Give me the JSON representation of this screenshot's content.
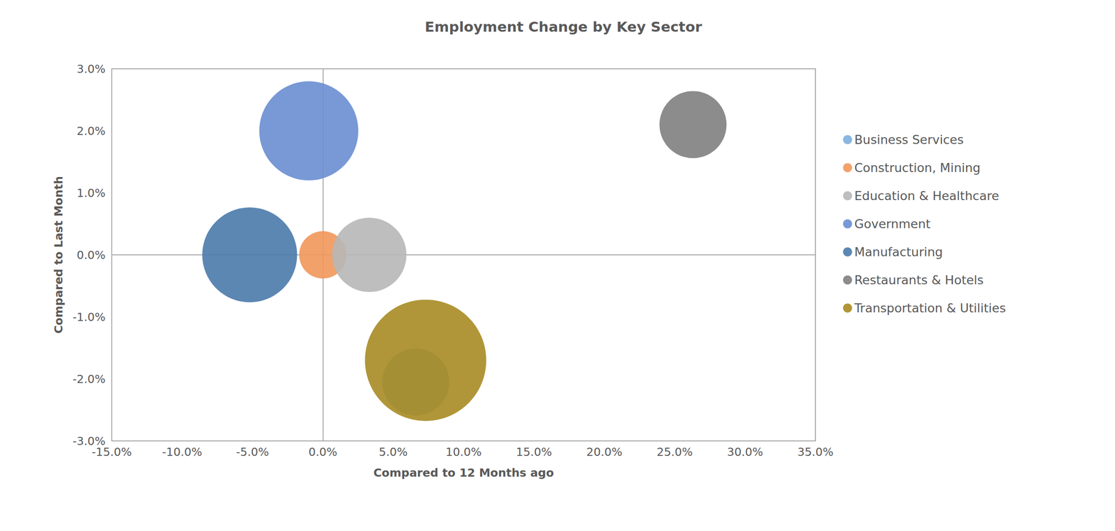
{
  "chart_data": {
    "type": "bubble",
    "title": "Employment Change by Key Sector",
    "x_label": "Compared to 12 Months ago",
    "y_label": "Compared to Last Month",
    "xlim": [
      -15,
      35
    ],
    "xticks": [
      {
        "value": -15,
        "label": "-15.0%"
      },
      {
        "value": -10,
        "label": "-10.0%"
      },
      {
        "value": -5,
        "label": "-5.0%"
      },
      {
        "value": 0,
        "label": "0.0%"
      },
      {
        "value": 5,
        "label": "5.0%"
      },
      {
        "value": 10,
        "label": "10.0%"
      },
      {
        "value": 15,
        "label": "15.0%"
      },
      {
        "value": 20,
        "label": "20.0%"
      },
      {
        "value": 25,
        "label": "25.0%"
      },
      {
        "value": 30,
        "label": "30.0%"
      },
      {
        "value": 35,
        "label": "35.0%"
      }
    ],
    "ylim": [
      -3,
      3
    ],
    "yticks": [
      {
        "value": -3,
        "label": "-3.0%"
      },
      {
        "value": -2,
        "label": "-2.0%"
      },
      {
        "value": -1,
        "label": "-1.0%"
      },
      {
        "value": 0,
        "label": "0.0%"
      },
      {
        "value": 1,
        "label": "1.0%"
      },
      {
        "value": 2,
        "label": "2.0%"
      },
      {
        "value": 3,
        "label": "3.0%"
      }
    ],
    "grid": false,
    "legend": "right",
    "series": [
      {
        "name": "Business Services",
        "color": "#7cafdd",
        "x": [
          6.6
        ],
        "values": [
          -2.05
        ],
        "size": [
          22
        ]
      },
      {
        "name": "Construction, Mining",
        "color": "#f1975a",
        "x": [
          0.0
        ],
        "values": [
          0.0
        ],
        "size": [
          11
        ]
      },
      {
        "name": "Education & Healthcare",
        "color": "#b7b7b7",
        "x": [
          3.3
        ],
        "values": [
          0.0
        ],
        "size": [
          27
        ]
      },
      {
        "name": "Government",
        "color": "#698ed0",
        "x": [
          -1.0
        ],
        "values": [
          2.0
        ],
        "size": [
          48
        ]
      },
      {
        "name": "Manufacturing",
        "color": "#4a7aab",
        "x": [
          -5.2
        ],
        "values": [
          0.0
        ],
        "size": [
          44
        ]
      },
      {
        "name": "Restaurants & Hotels",
        "color": "#7f7f7f",
        "x": [
          26.3
        ],
        "values": [
          2.1
        ],
        "size": [
          22
        ]
      },
      {
        "name": "Transportation & Utilities",
        "color": "#a78b22",
        "x": [
          7.3
        ],
        "values": [
          -1.7
        ],
        "size": [
          72
        ]
      }
    ]
  }
}
